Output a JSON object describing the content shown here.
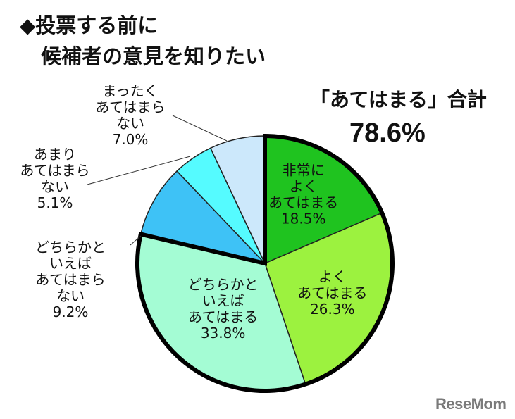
{
  "title": {
    "line1": "◆投票する前に",
    "line2": "候補者の意見を知りたい"
  },
  "summary": {
    "label": "「あてはまる」合計",
    "value": "78.6%"
  },
  "watermark": "ReseMom",
  "chart_data": {
    "type": "pie",
    "start": "12 o'clock, clockwise",
    "slices": [
      {
        "lines": [
          "非常に",
          "よく",
          "あてはまる"
        ],
        "pct_label": "18.5%",
        "value": 18.5,
        "color": "#1fc31f",
        "emphasis": true
      },
      {
        "lines": [
          "よく",
          "あてはまる"
        ],
        "pct_label": "26.3%",
        "value": 26.3,
        "color": "#9cf23f",
        "emphasis": true
      },
      {
        "lines": [
          "どちらかと",
          "いえば",
          "あてはまる"
        ],
        "pct_label": "33.8%",
        "value": 33.8,
        "color": "#a4fcd4",
        "emphasis": true
      },
      {
        "lines": [
          "どちらかと",
          "いえば",
          "あてはまら",
          "ない"
        ],
        "pct_label": "9.2%",
        "value": 9.2,
        "color": "#3ec2f6",
        "emphasis": false
      },
      {
        "lines": [
          "あまり",
          "あてはまら",
          "ない"
        ],
        "pct_label": "5.1%",
        "value": 5.1,
        "color": "#55fbff",
        "emphasis": false
      },
      {
        "lines": [
          "まったく",
          "あてはまら",
          "ない"
        ],
        "pct_label": "7.0%",
        "value": 7.0,
        "color": "#cce8fb",
        "emphasis": false
      }
    ]
  }
}
